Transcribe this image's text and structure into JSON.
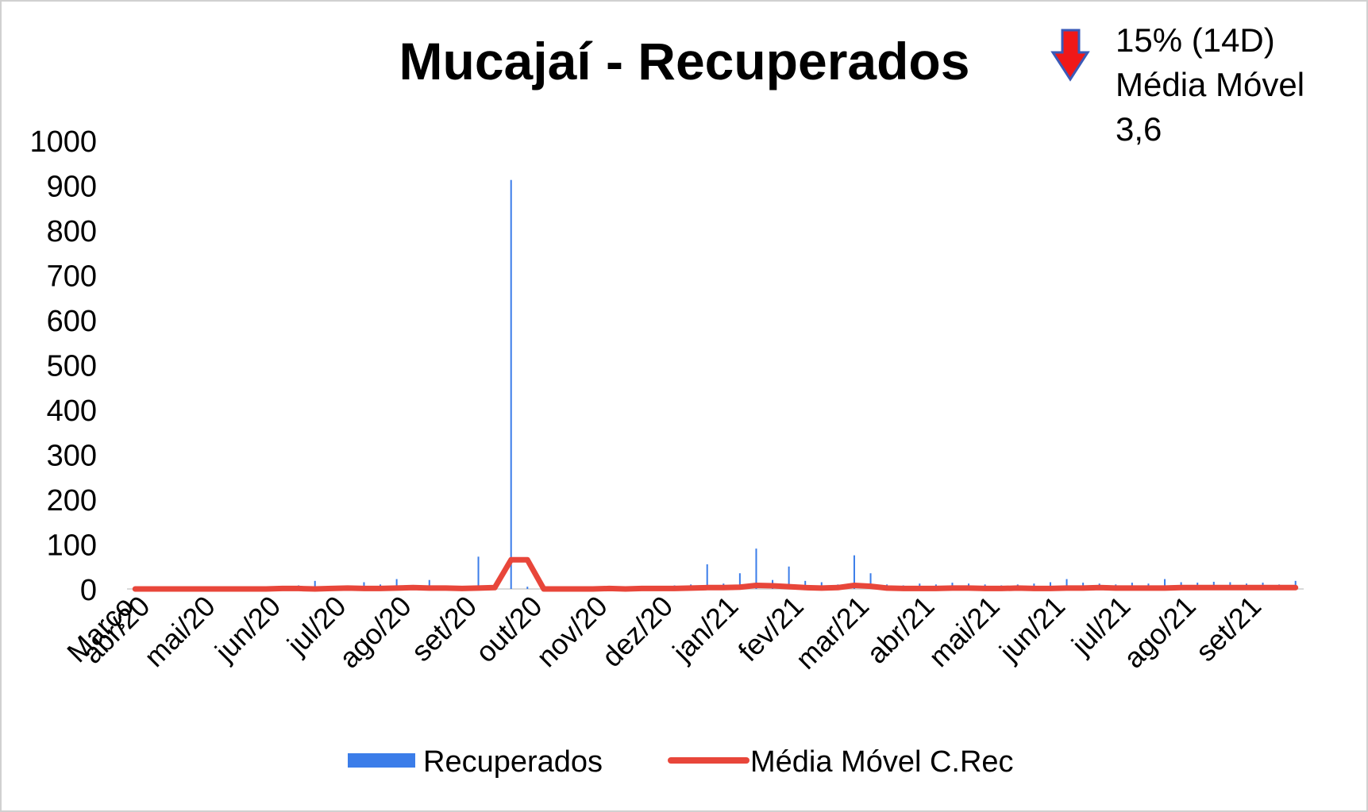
{
  "chart_data": {
    "type": "bar_line",
    "title": "Mucajaí - Recuperados",
    "annotation_lines": [
      "15% (14D)",
      "Média Móvel",
      "3,6"
    ],
    "categories": [
      "Março",
      "abr/20",
      null,
      null,
      null,
      "mai/20",
      null,
      null,
      null,
      "jun/20",
      null,
      null,
      null,
      "jul/20",
      null,
      null,
      null,
      "ago/20",
      null,
      null,
      null,
      "set/20",
      null,
      null,
      null,
      "out/20",
      null,
      null,
      null,
      "nov/20",
      null,
      null,
      null,
      "dez/20",
      null,
      null,
      null,
      "jan/21",
      null,
      null,
      null,
      "fev/21",
      null,
      null,
      null,
      "mar/21",
      null,
      null,
      null,
      "abr/21",
      null,
      null,
      null,
      "mai/21",
      null,
      null,
      null,
      "jun/21",
      null,
      null,
      null,
      "jul/21",
      null,
      null,
      null,
      "ago/21",
      null,
      null,
      null,
      "set/21",
      null,
      null
    ],
    "series": [
      {
        "name": "Recuperados",
        "kind": "bar",
        "color": "#3b7de9",
        "values": [
          0,
          0,
          0,
          0,
          1,
          0,
          2,
          3,
          5,
          4,
          8,
          18,
          6,
          5,
          15,
          10,
          22,
          8,
          20,
          6,
          5,
          72,
          12,
          912,
          5,
          2,
          3,
          2,
          4,
          3,
          6,
          4,
          5,
          8,
          10,
          55,
          12,
          35,
          90,
          20,
          50,
          18,
          15,
          10,
          75,
          35,
          10,
          8,
          12,
          10,
          14,
          12,
          10,
          8,
          10,
          12,
          15,
          22,
          14,
          12,
          10,
          14,
          12,
          22,
          15,
          14,
          16,
          15,
          12,
          14,
          10,
          18
        ]
      },
      {
        "name": "Média Móvel C.Rec",
        "kind": "line",
        "color": "#e8463a",
        "values": [
          0,
          0,
          0,
          0,
          0,
          0,
          0,
          0,
          0,
          1,
          1,
          0,
          1,
          2,
          1,
          1,
          2,
          3,
          2,
          2,
          1,
          2,
          3,
          65,
          65,
          0,
          0,
          0,
          0,
          1,
          0,
          1,
          1,
          1,
          2,
          3,
          3,
          4,
          8,
          7,
          5,
          3,
          2,
          3,
          8,
          6,
          2,
          1,
          1,
          1,
          2,
          2,
          1,
          1,
          2,
          1,
          1,
          2,
          2,
          3,
          2,
          2,
          2,
          2,
          3,
          3,
          3,
          3,
          3,
          3,
          3,
          3
        ]
      }
    ],
    "ylim": [
      0,
      1000
    ],
    "yticks": [
      0,
      100,
      200,
      300,
      400,
      500,
      600,
      700,
      800,
      900,
      1000
    ],
    "grid": false,
    "legend": "bottom"
  }
}
